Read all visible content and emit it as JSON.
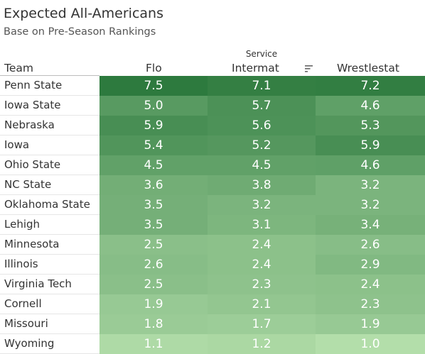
{
  "title": "Expected All-Americans",
  "subtitle": "Base on Pre-Season Rankings",
  "header": {
    "team": "Team",
    "flo": "Flo",
    "service_super": "Service",
    "intermat": "Intermat",
    "wrestlestat": "Wrestlestat"
  },
  "icons": {
    "sort": "sort-descending-icon"
  },
  "colors": {
    "low": "#b3deaa",
    "high": "#2d7a3e"
  },
  "chart_data": {
    "type": "heatmap",
    "title": "Expected All-Americans",
    "subtitle": "Base on Pre-Season Rankings",
    "columns": [
      "Flo",
      "Intermat",
      "Wrestlestat"
    ],
    "column_group_label": "Service",
    "rows": [
      {
        "team": "Penn State",
        "values": [
          "7.5",
          "7.1",
          "7.2"
        ]
      },
      {
        "team": "Iowa State",
        "values": [
          "5.0",
          "5.7",
          "4.6"
        ]
      },
      {
        "team": "Nebraska",
        "values": [
          "5.9",
          "5.6",
          "5.3"
        ]
      },
      {
        "team": "Iowa",
        "values": [
          "5.4",
          "5.2",
          "5.9"
        ]
      },
      {
        "team": "Ohio State",
        "values": [
          "4.5",
          "4.5",
          "4.6"
        ]
      },
      {
        "team": "NC State",
        "values": [
          "3.6",
          "3.8",
          "3.2"
        ]
      },
      {
        "team": "Oklahoma State",
        "values": [
          "3.5",
          "3.2",
          "3.2"
        ]
      },
      {
        "team": "Lehigh",
        "values": [
          "3.5",
          "3.1",
          "3.4"
        ]
      },
      {
        "team": "Minnesota",
        "values": [
          "2.5",
          "2.4",
          "2.6"
        ]
      },
      {
        "team": "Illinois",
        "values": [
          "2.6",
          "2.4",
          "2.9"
        ]
      },
      {
        "team": "Virginia Tech",
        "values": [
          "2.5",
          "2.3",
          "2.4"
        ]
      },
      {
        "team": "Cornell",
        "values": [
          "1.9",
          "2.1",
          "2.3"
        ]
      },
      {
        "team": "Missouri",
        "values": [
          "1.8",
          "1.7",
          "1.9"
        ]
      },
      {
        "team": "Wyoming",
        "values": [
          "1.1",
          "1.2",
          "1.0"
        ]
      }
    ],
    "value_range": [
      1.0,
      7.5
    ]
  }
}
